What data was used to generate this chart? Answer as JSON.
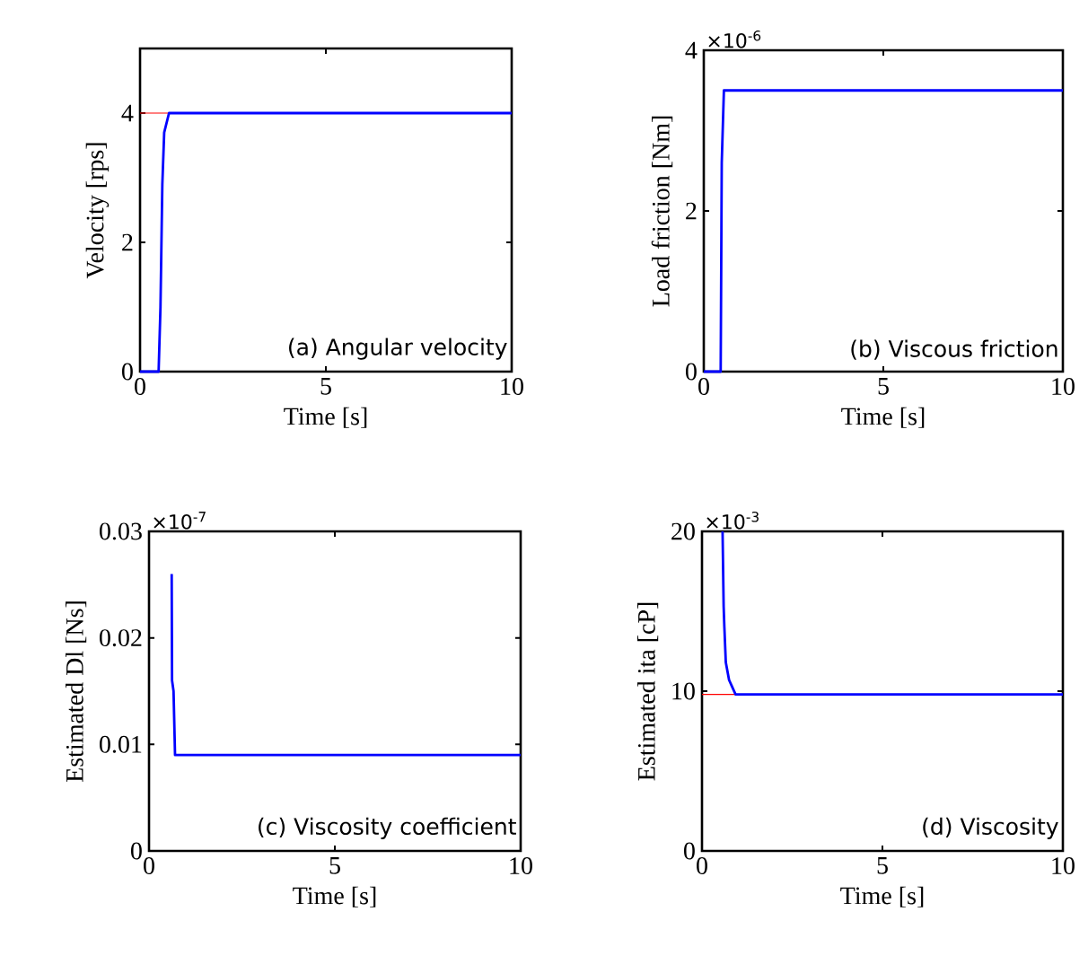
{
  "chart_data": [
    {
      "type": "line",
      "xlabel": "Time [s]",
      "ylabel": "Velocity [rps]",
      "xlim": [
        0,
        10
      ],
      "xticks": [
        0,
        5,
        10
      ],
      "ylim": [
        0,
        5
      ],
      "yticks": [
        0,
        2,
        4
      ],
      "series": [
        {
          "color": "#0000ff",
          "x": [
            0,
            0.5,
            0.55,
            0.6,
            0.65,
            0.78,
            10
          ],
          "values": [
            0,
            0,
            1.0,
            2.9,
            3.7,
            4,
            4
          ]
        }
      ],
      "ref_lines": [
        {
          "axis": "y",
          "value": 4,
          "color": "#ff0000"
        }
      ],
      "annotations": [
        "(a) Angular velocity"
      ]
    },
    {
      "type": "line",
      "xlabel": "Time [s]",
      "ylabel": "Load friction [Nm]",
      "xlim": [
        0,
        10
      ],
      "xticks": [
        0,
        5,
        10
      ],
      "ylim": [
        0,
        4
      ],
      "yticks": [
        0,
        2,
        4
      ],
      "series": [
        {
          "color": "#0000ff",
          "x": [
            0,
            0.47,
            0.5,
            0.56,
            10
          ],
          "values": [
            0,
            0,
            2.6,
            3.5,
            3.5
          ]
        }
      ],
      "annotations": [
        "(b) Viscous friction",
        "×10$^{-6}$"
      ]
    },
    {
      "type": "line",
      "xlabel": "Time [s]",
      "ylabel": "Estimated Dl [Ns]",
      "xlim": [
        0,
        10
      ],
      "xticks": [
        0,
        5,
        10
      ],
      "ylim": [
        0,
        0.03
      ],
      "yticks": [
        0,
        0.01,
        0.02,
        0.03
      ],
      "series": [
        {
          "color": "#0000ff",
          "x": [
            0.61,
            0.62,
            0.66,
            0.7,
            10
          ],
          "values": [
            0.026,
            0.016,
            0.015,
            0.009,
            0.009
          ]
        }
      ],
      "annotations": [
        "(c) Viscosity coefficient",
        "×10$^{-7}$"
      ]
    },
    {
      "type": "line",
      "xlabel": "Time [s]",
      "ylabel": "Estimated ita [cP]",
      "xlim": [
        0,
        10
      ],
      "xticks": [
        0,
        5,
        10
      ],
      "ylim": [
        0,
        20
      ],
      "yticks": [
        0,
        10,
        20
      ],
      "series": [
        {
          "color": "#0000ff",
          "x": [
            0.57,
            0.6,
            0.62,
            0.66,
            0.75,
            0.93,
            10
          ],
          "values": [
            20,
            15.3,
            14,
            11.8,
            10.7,
            9.8,
            9.8
          ]
        }
      ],
      "ref_lines": [
        {
          "axis": "y",
          "value": 9.8,
          "color": "#ff0000"
        }
      ],
      "annotations": [
        "(d) Viscosity",
        "×10$^{-3}$"
      ]
    }
  ]
}
